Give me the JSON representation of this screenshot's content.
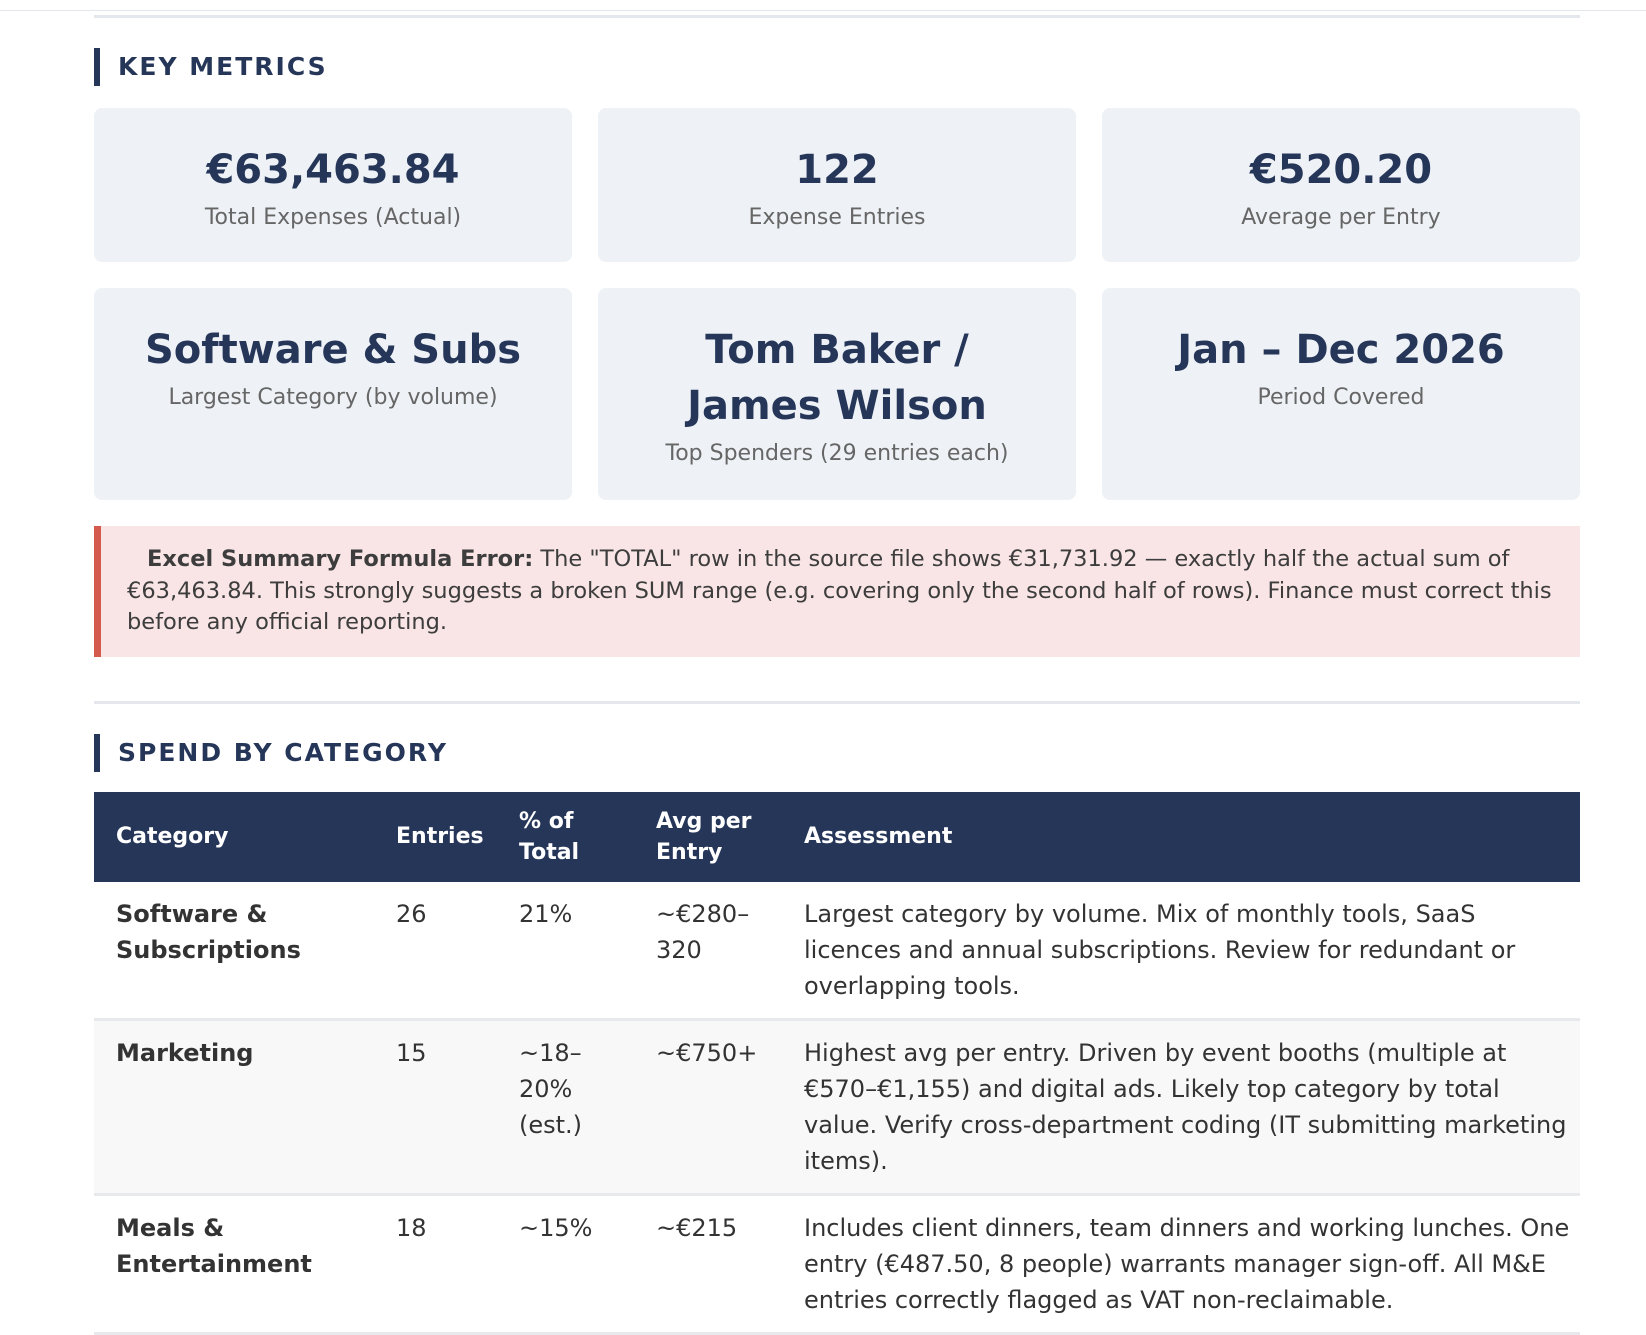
{
  "sections": {
    "key_metrics": "KEY METRICS",
    "spend_by_category": "SPEND BY CATEGORY"
  },
  "metrics": [
    {
      "value": "€63,463.84",
      "label": "Total Expenses (Actual)"
    },
    {
      "value": "122",
      "label": "Expense Entries"
    },
    {
      "value": "€520.20",
      "label": "Average per Entry"
    },
    {
      "value": "Software & Subs",
      "label": "Largest Category (by volume)"
    },
    {
      "value": "Tom Baker / James Wilson",
      "label": "Top Spenders (29 entries each)"
    },
    {
      "value": "Jan – Dec 2026",
      "label": "Period Covered"
    }
  ],
  "alert": {
    "title": "Excel Summary Formula Error:",
    "text": "The \"TOTAL\" row in the source file shows €31,731.92 — exactly half the actual sum of €63,463.84. This strongly suggests a broken SUM range (e.g. covering only the second half of rows). Finance must correct this before any official reporting.",
    "color": "#d45a4e"
  },
  "table": {
    "headers": [
      "Category",
      "Entries",
      "% of Total",
      "Avg per Entry",
      "Assessment"
    ],
    "rows": [
      {
        "category": "Software & Subscriptions",
        "entries": "26",
        "pct": "21%",
        "avg": "~€280–320",
        "assessment": "Largest category by volume. Mix of monthly tools, SaaS licences and annual subscriptions. Review for redundant or overlapping tools."
      },
      {
        "category": "Marketing",
        "entries": "15",
        "pct": "~18–20% (est.)",
        "avg": "~€750+",
        "assessment": "Highest avg per entry. Driven by event booths (multiple at €570–€1,155) and digital ads. Likely top category by total value. Verify cross-department coding (IT submitting marketing items)."
      },
      {
        "category": "Meals & Entertainment",
        "entries": "18",
        "pct": "~15%",
        "avg": "~€215",
        "assessment": "Includes client dinners, team dinners and working lunches. One entry (€487.50, 8 people) warrants manager sign-off. All M&E entries correctly flagged as VAT non-reclaimable."
      }
    ]
  },
  "colors": {
    "primary": "#253659",
    "card_bg": "#eef2f6",
    "alert_bg": "#f9e5e6"
  }
}
